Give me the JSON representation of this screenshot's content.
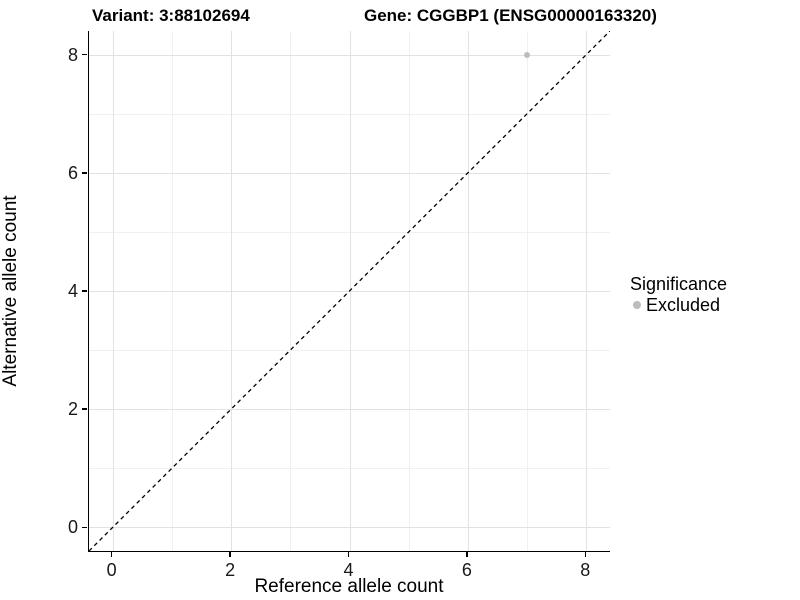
{
  "titles": {
    "variant": "Variant: 3:88102694",
    "gene": "Gene: CGGBP1 (ENSG00000163320)"
  },
  "chart_data": {
    "type": "scatter",
    "title": "Variant: 3:88102694 — Gene: CGGBP1 (ENSG00000163320)",
    "xlabel": "Reference allele count",
    "ylabel": "Alternative allele count",
    "xlim": [
      -0.4,
      8.4
    ],
    "ylim": [
      -0.4,
      8.4
    ],
    "x_ticks": [
      0,
      2,
      4,
      6,
      8
    ],
    "y_ticks": [
      0,
      2,
      4,
      6,
      8
    ],
    "x_minor_ticks": [
      1,
      3,
      5,
      7
    ],
    "y_minor_ticks": [
      1,
      3,
      5,
      7
    ],
    "grid": true,
    "series": [
      {
        "name": "Excluded",
        "color": "#bdbdbd",
        "points": [
          {
            "x": 7,
            "y": 8
          }
        ]
      }
    ],
    "reference_line": {
      "slope": 1,
      "intercept": 0,
      "style": "dashed",
      "color": "#000000"
    },
    "legend": {
      "title": "Significance",
      "position": "right",
      "items": [
        {
          "label": "Excluded",
          "color": "#bdbdbd"
        }
      ]
    }
  },
  "colors": {
    "background": "#ffffff",
    "grid_major": "#e2e2e2",
    "grid_minor": "#f0f0f0",
    "axis_line": "#000000",
    "point": "#bdbdbd"
  }
}
